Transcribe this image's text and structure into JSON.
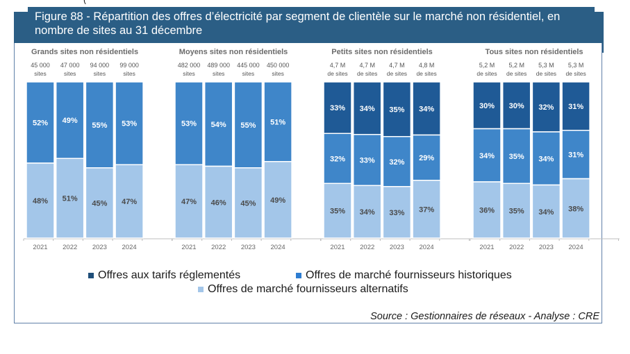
{
  "header": {
    "title_line1": "Figure 88 - Répartition des offres d’électricité par segment de clientèle sur le marché non résidentiel, en",
    "title_line2": "nombre de sites au 31 décembre"
  },
  "source": "Source : Gestionnaires de réseaux - Analyse : CRE",
  "colors": {
    "banner": "#2b5e85",
    "tarifs_reglementes": "#1f5a96",
    "historiques": "#3f86c9",
    "alternatifs": "#a3c6e9",
    "label_light": "#ffffff",
    "label_dark": "#4a4a4a",
    "axis_text": "#666666"
  },
  "chart_data": {
    "type": "bar",
    "stacked": true,
    "title": "Figure 88 - Répartition des offres d’électricité par segment de clientèle sur le marché non résidentiel, en nombre de sites au 31 décembre",
    "ylim": [
      0,
      100
    ],
    "unit": "%",
    "grid": false,
    "legend_position": "bottom",
    "legend": [
      {
        "key": "tarifs_reglementes",
        "label": "Offres aux tarifs réglementés"
      },
      {
        "key": "historiques",
        "label": "Offres de marché fournisseurs historiques"
      },
      {
        "key": "alternatifs",
        "label": "Offres de marché fournisseurs alternatifs"
      }
    ],
    "panels": [
      {
        "title": "Grands sites non résidentiels",
        "categories": [
          "2021",
          "2022",
          "2023",
          "2024"
        ],
        "totals": [
          [
            "45 000",
            "sites"
          ],
          [
            "47 000",
            "sites"
          ],
          [
            "94 000",
            "sites"
          ],
          [
            "99 000",
            "sites"
          ]
        ],
        "series": [
          {
            "name": "Offres aux tarifs réglementés",
            "key": "tarifs_reglementes",
            "values": [
              0,
              0,
              0,
              0
            ]
          },
          {
            "name": "Offres de marché fournisseurs historiques",
            "key": "historiques",
            "values": [
              52,
              49,
              55,
              53
            ]
          },
          {
            "name": "Offres de marché fournisseurs alternatifs",
            "key": "alternatifs",
            "values": [
              48,
              51,
              45,
              47
            ]
          }
        ]
      },
      {
        "title": "Moyens sites non résidentiels",
        "categories": [
          "2021",
          "2022",
          "2023",
          "2024"
        ],
        "totals": [
          [
            "482 000",
            "sites"
          ],
          [
            "489 000",
            "sites"
          ],
          [
            "445 000",
            "sites"
          ],
          [
            "450 000",
            "sites"
          ]
        ],
        "series": [
          {
            "name": "Offres aux tarifs réglementés",
            "key": "tarifs_reglementes",
            "values": [
              0,
              0,
              0,
              0
            ]
          },
          {
            "name": "Offres de marché fournisseurs historiques",
            "key": "historiques",
            "values": [
              53,
              54,
              55,
              51
            ]
          },
          {
            "name": "Offres de marché fournisseurs alternatifs",
            "key": "alternatifs",
            "values": [
              47,
              46,
              45,
              49
            ]
          }
        ]
      },
      {
        "title": "Petits sites non résidentiels",
        "categories": [
          "2021",
          "2022",
          "2023",
          "2024"
        ],
        "totals": [
          [
            "4,7 M",
            "de sites"
          ],
          [
            "4,7 M",
            "de sites"
          ],
          [
            "4,7 M",
            "de sites"
          ],
          [
            "4,8 M",
            "de sites"
          ]
        ],
        "series": [
          {
            "name": "Offres aux tarifs réglementés",
            "key": "tarifs_reglementes",
            "values": [
              33,
              34,
              35,
              34
            ]
          },
          {
            "name": "Offres de marché fournisseurs historiques",
            "key": "historiques",
            "values": [
              32,
              33,
              32,
              29
            ]
          },
          {
            "name": "Offres de marché fournisseurs alternatifs",
            "key": "alternatifs",
            "values": [
              35,
              34,
              33,
              37
            ]
          }
        ]
      },
      {
        "title": "Tous sites non résidentiels",
        "categories": [
          "2021",
          "2022",
          "2023",
          "2024"
        ],
        "totals": [
          [
            "5,2 M",
            "de sites"
          ],
          [
            "5,2 M",
            "de sites"
          ],
          [
            "5,3 M",
            "de sites"
          ],
          [
            "5,3 M",
            "de sites"
          ]
        ],
        "series": [
          {
            "name": "Offres aux tarifs réglementés",
            "key": "tarifs_reglementes",
            "values": [
              30,
              30,
              32,
              31
            ]
          },
          {
            "name": "Offres de marché fournisseurs historiques",
            "key": "historiques",
            "values": [
              34,
              35,
              34,
              31
            ]
          },
          {
            "name": "Offres de marché fournisseurs alternatifs",
            "key": "alternatifs",
            "values": [
              36,
              35,
              34,
              38
            ]
          }
        ]
      }
    ]
  }
}
